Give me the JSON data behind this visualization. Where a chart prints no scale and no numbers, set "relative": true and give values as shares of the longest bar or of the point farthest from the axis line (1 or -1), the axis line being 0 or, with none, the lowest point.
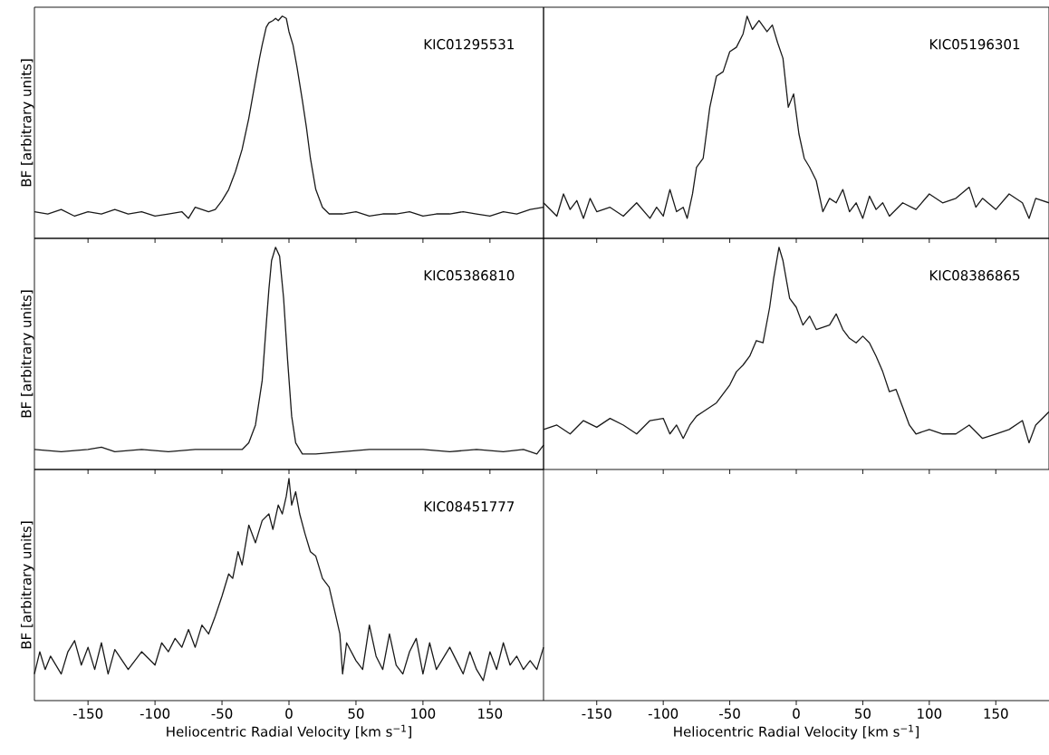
{
  "chart_data": [
    {
      "type": "line",
      "relative": true,
      "color": "#1a1a1a",
      "xlim": [
        -190,
        190
      ],
      "xticks": [
        -150,
        -100,
        -50,
        0,
        50,
        100,
        150
      ],
      "tick_labels": false,
      "ylabel": "BF [arbitrary units]",
      "annotations": [
        "KIC01295531"
      ],
      "x": [
        -190,
        -180,
        -170,
        -160,
        -150,
        -140,
        -130,
        -120,
        -110,
        -100,
        -90,
        -80,
        -75,
        -70,
        -65,
        -60,
        -55,
        -50,
        -45,
        -40,
        -35,
        -30,
        -25,
        -22,
        -20,
        -17,
        -15,
        -12,
        -10,
        -8,
        -5,
        -2,
        0,
        3,
        6,
        10,
        13,
        16,
        20,
        25,
        30,
        40,
        50,
        60,
        70,
        80,
        90,
        100,
        110,
        120,
        130,
        140,
        150,
        160,
        170,
        180,
        190
      ],
      "values": [
        0.12,
        0.11,
        0.13,
        0.1,
        0.12,
        0.11,
        0.13,
        0.11,
        0.12,
        0.1,
        0.11,
        0.12,
        0.09,
        0.14,
        0.13,
        0.12,
        0.13,
        0.17,
        0.22,
        0.3,
        0.4,
        0.54,
        0.71,
        0.81,
        0.87,
        0.95,
        0.97,
        0.98,
        0.99,
        0.98,
        1.0,
        0.99,
        0.93,
        0.87,
        0.77,
        0.62,
        0.5,
        0.36,
        0.22,
        0.14,
        0.11,
        0.11,
        0.12,
        0.1,
        0.11,
        0.11,
        0.12,
        0.1,
        0.11,
        0.11,
        0.12,
        0.11,
        0.1,
        0.12,
        0.11,
        0.13,
        0.14
      ]
    },
    {
      "type": "line",
      "relative": true,
      "color": "#1a1a1a",
      "xlim": [
        -190,
        190
      ],
      "xticks": [
        -150,
        -100,
        -50,
        0,
        50,
        100,
        150
      ],
      "tick_labels": false,
      "annotations": [
        "KIC05196301"
      ],
      "x": [
        -190,
        -180,
        -175,
        -170,
        -165,
        -160,
        -155,
        -150,
        -140,
        -130,
        -120,
        -110,
        -105,
        -100,
        -95,
        -90,
        -85,
        -82,
        -78,
        -75,
        -70,
        -65,
        -60,
        -55,
        -50,
        -45,
        -40,
        -37,
        -33,
        -28,
        -22,
        -18,
        -14,
        -10,
        -6,
        -2,
        2,
        6,
        10,
        15,
        20,
        25,
        30,
        35,
        40,
        45,
        50,
        55,
        60,
        65,
        70,
        80,
        90,
        100,
        110,
        120,
        130,
        135,
        140,
        150,
        160,
        170,
        175,
        180,
        190
      ],
      "values": [
        0.16,
        0.1,
        0.2,
        0.13,
        0.17,
        0.09,
        0.18,
        0.12,
        0.14,
        0.1,
        0.16,
        0.09,
        0.14,
        0.1,
        0.22,
        0.12,
        0.14,
        0.09,
        0.2,
        0.32,
        0.36,
        0.59,
        0.73,
        0.75,
        0.84,
        0.86,
        0.92,
        1.0,
        0.94,
        0.98,
        0.93,
        0.96,
        0.88,
        0.81,
        0.59,
        0.65,
        0.47,
        0.36,
        0.32,
        0.26,
        0.12,
        0.18,
        0.16,
        0.22,
        0.12,
        0.16,
        0.09,
        0.19,
        0.13,
        0.16,
        0.1,
        0.16,
        0.13,
        0.2,
        0.16,
        0.18,
        0.23,
        0.14,
        0.18,
        0.13,
        0.2,
        0.16,
        0.09,
        0.18,
        0.16
      ]
    },
    {
      "type": "line",
      "relative": true,
      "color": "#1a1a1a",
      "xlim": [
        -190,
        190
      ],
      "xticks": [
        -150,
        -100,
        -50,
        0,
        50,
        100,
        150
      ],
      "tick_labels": false,
      "ylabel": "BF [arbitrary units]",
      "annotations": [
        "KIC05386810"
      ],
      "x": [
        -190,
        -170,
        -150,
        -140,
        -130,
        -110,
        -90,
        -70,
        -50,
        -35,
        -30,
        -25,
        -20,
        -17,
        -15,
        -13,
        -10,
        -7,
        -4,
        -1,
        2,
        5,
        10,
        20,
        40,
        60,
        80,
        100,
        120,
        140,
        160,
        175,
        185,
        190
      ],
      "values": [
        0.09,
        0.08,
        0.09,
        0.1,
        0.08,
        0.09,
        0.08,
        0.09,
        0.09,
        0.09,
        0.12,
        0.2,
        0.4,
        0.65,
        0.81,
        0.94,
        1.0,
        0.96,
        0.77,
        0.49,
        0.24,
        0.12,
        0.07,
        0.07,
        0.08,
        0.09,
        0.09,
        0.09,
        0.08,
        0.09,
        0.08,
        0.09,
        0.07,
        0.11
      ]
    },
    {
      "type": "line",
      "relative": true,
      "color": "#1a1a1a",
      "xlim": [
        -190,
        190
      ],
      "xticks": [
        -150,
        -100,
        -50,
        0,
        50,
        100,
        150
      ],
      "tick_labels": "x",
      "xlabel": "Heliocentric Radial Velocity [km s$^{−1}$]",
      "annotations": [
        "KIC08386865"
      ],
      "x": [
        -190,
        -180,
        -170,
        -160,
        -150,
        -140,
        -130,
        -120,
        -110,
        -100,
        -95,
        -90,
        -85,
        -80,
        -75,
        -70,
        -60,
        -50,
        -45,
        -40,
        -35,
        -30,
        -25,
        -20,
        -17,
        -13,
        -10,
        -5,
        0,
        5,
        10,
        15,
        20,
        25,
        30,
        35,
        40,
        45,
        50,
        55,
        60,
        65,
        70,
        75,
        80,
        85,
        90,
        100,
        110,
        120,
        130,
        140,
        150,
        160,
        170,
        175,
        180,
        190
      ],
      "values": [
        0.18,
        0.2,
        0.16,
        0.22,
        0.19,
        0.23,
        0.2,
        0.16,
        0.22,
        0.23,
        0.16,
        0.2,
        0.14,
        0.2,
        0.24,
        0.26,
        0.3,
        0.38,
        0.44,
        0.47,
        0.51,
        0.58,
        0.57,
        0.73,
        0.86,
        1.0,
        0.94,
        0.77,
        0.73,
        0.65,
        0.69,
        0.63,
        0.64,
        0.65,
        0.7,
        0.63,
        0.59,
        0.57,
        0.6,
        0.57,
        0.51,
        0.44,
        0.35,
        0.36,
        0.28,
        0.2,
        0.16,
        0.18,
        0.16,
        0.16,
        0.2,
        0.14,
        0.16,
        0.18,
        0.22,
        0.12,
        0.2,
        0.26
      ]
    },
    {
      "type": "line",
      "relative": true,
      "color": "#1a1a1a",
      "xlim": [
        -190,
        190
      ],
      "xticks": [
        -150,
        -100,
        -50,
        0,
        50,
        100,
        150
      ],
      "tick_labels": "x",
      "xlabel": "Heliocentric Radial Velocity [km s$^{−1}$]",
      "ylabel": "BF [arbitrary units]",
      "annotations": [
        "KIC08451777"
      ],
      "x": [
        -190,
        -186,
        -182,
        -178,
        -170,
        -165,
        -160,
        -155,
        -150,
        -145,
        -140,
        -135,
        -130,
        -120,
        -110,
        -100,
        -95,
        -90,
        -85,
        -80,
        -75,
        -70,
        -65,
        -60,
        -55,
        -50,
        -45,
        -42,
        -38,
        -35,
        -30,
        -25,
        -20,
        -15,
        -12,
        -8,
        -5,
        -2,
        0,
        2,
        5,
        8,
        12,
        16,
        20,
        25,
        30,
        35,
        38,
        40,
        43,
        50,
        55,
        60,
        65,
        70,
        75,
        80,
        85,
        90,
        95,
        100,
        105,
        110,
        120,
        130,
        135,
        140,
        145,
        150,
        155,
        160,
        165,
        170,
        175,
        180,
        185,
        190
      ],
      "values": [
        0.12,
        0.22,
        0.14,
        0.2,
        0.12,
        0.22,
        0.27,
        0.16,
        0.24,
        0.14,
        0.26,
        0.12,
        0.23,
        0.14,
        0.22,
        0.16,
        0.26,
        0.22,
        0.28,
        0.24,
        0.32,
        0.24,
        0.34,
        0.3,
        0.38,
        0.47,
        0.57,
        0.55,
        0.67,
        0.61,
        0.79,
        0.71,
        0.81,
        0.84,
        0.77,
        0.88,
        0.84,
        0.92,
        1.0,
        0.88,
        0.94,
        0.84,
        0.75,
        0.67,
        0.65,
        0.55,
        0.51,
        0.38,
        0.3,
        0.12,
        0.26,
        0.18,
        0.14,
        0.34,
        0.2,
        0.14,
        0.3,
        0.16,
        0.12,
        0.22,
        0.28,
        0.12,
        0.26,
        0.14,
        0.24,
        0.12,
        0.22,
        0.14,
        0.09,
        0.22,
        0.14,
        0.26,
        0.16,
        0.2,
        0.14,
        0.18,
        0.14,
        0.24
      ]
    }
  ]
}
